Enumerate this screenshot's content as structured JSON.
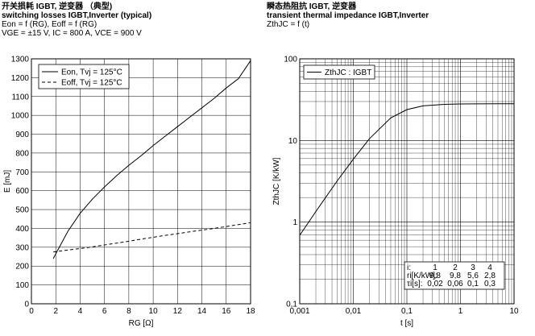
{
  "left_header": {
    "line1": "开关损耗 IGBT, 逆变器 （典型)",
    "line2": "switching losses  IGBT,Inverter (typical)",
    "line3": "Eon = f (RG), Eoff = f (RG)",
    "line4": "VGE = ±15 V, IC = 800 A, VCE = 900 V"
  },
  "right_header": {
    "line1": "瞬态热阻抗  IGBT, 逆变器",
    "line2": "transient thermal impedance  IGBT,Inverter",
    "line3": "ZthJC = f (t)"
  },
  "chart_data": [
    {
      "type": "line",
      "xlabel": "RG [Ω]",
      "ylabel": "E [mJ]",
      "xlim": [
        0,
        18
      ],
      "ylim": [
        0,
        1300
      ],
      "xticks": [
        "0",
        "2",
        "4",
        "6",
        "8",
        "10",
        "12",
        "14",
        "16",
        "18"
      ],
      "yticks": [
        "0",
        "100",
        "200",
        "300",
        "400",
        "500",
        "600",
        "700",
        "800",
        "900",
        "1000",
        "1100",
        "1200",
        "1300"
      ],
      "grid": true,
      "legend_position": "top-left",
      "series": [
        {
          "name": "Eon, Tvj = 125°C",
          "style": "solid",
          "color": "#000000",
          "x": [
            1.8,
            2,
            3,
            4,
            5,
            6,
            7,
            8,
            9,
            10,
            11,
            12,
            13,
            14,
            15,
            16,
            17,
            18
          ],
          "y": [
            240,
            265,
            385,
            480,
            555,
            620,
            680,
            735,
            785,
            840,
            890,
            940,
            990,
            1040,
            1090,
            1145,
            1195,
            1290
          ]
        },
        {
          "name": "Eoff, Tvj = 125°C",
          "style": "dashed",
          "color": "#000000",
          "x": [
            1.8,
            2,
            3,
            4,
            5,
            6,
            7,
            8,
            9,
            10,
            11,
            12,
            13,
            14,
            15,
            16,
            17,
            18
          ],
          "y": [
            275,
            277,
            285,
            293,
            302,
            312,
            322,
            332,
            343,
            353,
            363,
            372,
            382,
            391,
            400,
            410,
            420,
            430
          ]
        }
      ]
    },
    {
      "type": "line",
      "xlabel": "t [s]",
      "ylabel": "ZthJC [K/kW]",
      "xscale": "log",
      "yscale": "log",
      "xlim": [
        0.001,
        10
      ],
      "ylim": [
        0.1,
        100
      ],
      "xticks": [
        "0,001",
        "0,01",
        "0,1",
        "1",
        "10"
      ],
      "yticks": [
        "0,1",
        "1",
        "10",
        "100"
      ],
      "grid": true,
      "legend_position": "top-left",
      "series": [
        {
          "name": "ZthJC : IGBT",
          "style": "solid",
          "color": "#000000",
          "x": [
            0.001,
            0.002,
            0.005,
            0.01,
            0.02,
            0.05,
            0.1,
            0.2,
            0.5,
            1,
            2,
            5,
            10
          ],
          "y": [
            0.69,
            1.35,
            3.2,
            5.9,
            10.5,
            18.9,
            23.9,
            26.5,
            27.7,
            28.0,
            28.1,
            28.2,
            28.2
          ]
        }
      ],
      "table": {
        "rows": [
          {
            "label": "i:",
            "values": [
              "1",
              "2",
              "3",
              "4"
            ]
          },
          {
            "label": "ri[K/kW]:",
            "values": [
              "9,8",
              "9,8",
              "5,6",
              "2,8"
            ]
          },
          {
            "label": "τi[s]:",
            "values": [
              "0,02",
              "0,06",
              "0,1",
              "0,3"
            ]
          }
        ]
      }
    }
  ]
}
